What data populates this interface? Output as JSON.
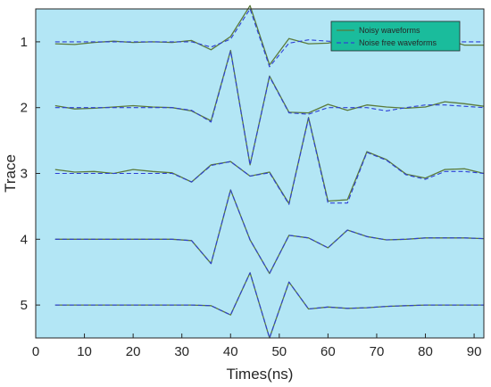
{
  "chart_data": {
    "type": "line",
    "title": "",
    "xlabel": "Times(ns)",
    "ylabel": "Trace",
    "xlim": [
      0,
      92
    ],
    "ylim": [
      0.5,
      5.5
    ],
    "y_reversed": true,
    "xticks": [
      0,
      10,
      20,
      30,
      40,
      50,
      60,
      70,
      80,
      90
    ],
    "yticks": [
      1,
      2,
      3,
      4,
      5
    ],
    "grid": false,
    "legend_position": "top-right",
    "colors": {
      "background": "#b3e6f5",
      "noisy": "#5a7a3a",
      "clean": "#2d3fd6",
      "legend_bg": "#1abc9c"
    },
    "series": [
      {
        "name": "Noisy waveforms",
        "style": "solid",
        "traces": [
          {
            "trace": 1,
            "x": [
              4,
              8,
              12,
              16,
              20,
              24,
              28,
              32,
              36,
              40,
              44,
              48,
              52,
              56,
              60,
              64,
              68,
              72,
              76,
              80,
              84,
              88,
              92
            ],
            "y": [
              1.03,
              1.04,
              1.01,
              0.99,
              1.01,
              1.0,
              1.01,
              0.98,
              1.12,
              0.92,
              0.45,
              1.35,
              0.95,
              1.03,
              1.02,
              0.96,
              0.93,
              1.0,
              1.05,
              0.99,
              0.96,
              1.05,
              1.05
            ]
          },
          {
            "trace": 2,
            "x": [
              4,
              8,
              12,
              16,
              20,
              24,
              28,
              32,
              36,
              40,
              44,
              48,
              52,
              56,
              60,
              64,
              68,
              72,
              76,
              80,
              84,
              88,
              92
            ],
            "y": [
              1.97,
              2.02,
              2.01,
              1.99,
              1.97,
              1.99,
              2.0,
              2.05,
              2.2,
              1.13,
              2.87,
              1.52,
              2.07,
              2.08,
              1.95,
              2.04,
              1.96,
              1.99,
              2.01,
              1.99,
              1.91,
              1.94,
              1.98
            ]
          },
          {
            "trace": 3,
            "x": [
              4,
              8,
              12,
              16,
              20,
              24,
              28,
              32,
              36,
              40,
              44,
              48,
              52,
              56,
              60,
              64,
              68,
              72,
              76,
              80,
              84,
              88,
              92
            ],
            "y": [
              2.94,
              2.98,
              2.97,
              3.0,
              2.94,
              2.97,
              2.99,
              3.13,
              2.87,
              2.82,
              3.04,
              2.98,
              3.46,
              2.15,
              3.42,
              3.4,
              2.67,
              2.79,
              3.01,
              3.07,
              2.94,
              2.93,
              3.0
            ]
          },
          {
            "trace": 4,
            "x": [
              4,
              8,
              12,
              16,
              20,
              24,
              28,
              32,
              36,
              40,
              44,
              48,
              52,
              56,
              60,
              64,
              68,
              72,
              76,
              80,
              84,
              88,
              92
            ],
            "y": [
              4.0,
              4.0,
              4.0,
              4.0,
              4.0,
              4.0,
              4.0,
              4.02,
              4.37,
              3.25,
              4.01,
              4.52,
              3.94,
              3.98,
              4.13,
              3.86,
              3.96,
              4.01,
              4.0,
              3.98,
              3.98,
              3.98,
              3.99
            ]
          },
          {
            "trace": 5,
            "x": [
              4,
              8,
              12,
              16,
              20,
              24,
              28,
              32,
              36,
              40,
              44,
              48,
              52,
              56,
              60,
              64,
              68,
              72,
              76,
              80,
              84,
              88,
              92
            ],
            "y": [
              5.0,
              5.0,
              5.0,
              5.0,
              5.0,
              5.0,
              5.0,
              5.0,
              5.01,
              5.15,
              4.51,
              5.5,
              4.65,
              5.06,
              5.03,
              5.05,
              5.04,
              5.02,
              5.01,
              5.0,
              5.0,
              5.0,
              5.0
            ]
          }
        ]
      },
      {
        "name": "Noise free waveforms",
        "style": "dashed",
        "traces": [
          {
            "trace": 1,
            "x": [
              4,
              8,
              12,
              16,
              20,
              24,
              28,
              32,
              36,
              40,
              44,
              48,
              52,
              56,
              60,
              64,
              68,
              72,
              76,
              80,
              84,
              88,
              92
            ],
            "y": [
              1.0,
              1.0,
              1.0,
              1.0,
              1.0,
              1.0,
              1.0,
              1.0,
              1.08,
              0.96,
              0.5,
              1.38,
              1.02,
              0.97,
              0.99,
              1.0,
              1.0,
              1.0,
              1.0,
              1.0,
              1.0,
              1.0,
              1.0
            ]
          },
          {
            "trace": 2,
            "x": [
              4,
              8,
              12,
              16,
              20,
              24,
              28,
              32,
              36,
              40,
              44,
              48,
              52,
              56,
              60,
              64,
              68,
              72,
              76,
              80,
              84,
              88,
              92
            ],
            "y": [
              2.0,
              2.0,
              2.0,
              2.0,
              2.0,
              2.0,
              2.0,
              2.04,
              2.22,
              1.14,
              2.87,
              1.53,
              2.08,
              2.1,
              2.0,
              2.0,
              2.0,
              2.05,
              2.0,
              1.96,
              1.96,
              1.98,
              2.0
            ]
          },
          {
            "trace": 3,
            "x": [
              4,
              8,
              12,
              16,
              20,
              24,
              28,
              32,
              36,
              40,
              44,
              48,
              52,
              56,
              60,
              64,
              68,
              72,
              76,
              80,
              84,
              88,
              92
            ],
            "y": [
              3.0,
              3.0,
              3.0,
              3.0,
              3.0,
              3.0,
              3.0,
              3.13,
              2.88,
              2.82,
              3.04,
              2.99,
              3.47,
              2.16,
              3.45,
              3.45,
              2.68,
              2.8,
              3.02,
              3.09,
              2.97,
              2.97,
              3.0
            ]
          },
          {
            "trace": 4,
            "x": [
              4,
              8,
              12,
              16,
              20,
              24,
              28,
              32,
              36,
              40,
              44,
              48,
              52,
              56,
              60,
              64,
              68,
              72,
              76,
              80,
              84,
              88,
              92
            ],
            "y": [
              4.0,
              4.0,
              4.0,
              4.0,
              4.0,
              4.0,
              4.0,
              4.02,
              4.37,
              3.25,
              4.01,
              4.52,
              3.94,
              3.98,
              4.13,
              3.86,
              3.96,
              4.01,
              4.0,
              3.98,
              3.98,
              3.98,
              3.99
            ]
          },
          {
            "trace": 5,
            "x": [
              4,
              8,
              12,
              16,
              20,
              24,
              28,
              32,
              36,
              40,
              44,
              48,
              52,
              56,
              60,
              64,
              68,
              72,
              76,
              80,
              84,
              88,
              92
            ],
            "y": [
              5.0,
              5.0,
              5.0,
              5.0,
              5.0,
              5.0,
              5.0,
              5.0,
              5.01,
              5.15,
              4.51,
              5.5,
              4.65,
              5.06,
              5.03,
              5.05,
              5.04,
              5.02,
              5.01,
              5.0,
              5.0,
              5.0,
              5.0
            ]
          }
        ]
      }
    ]
  }
}
